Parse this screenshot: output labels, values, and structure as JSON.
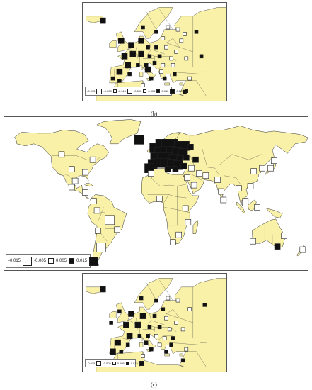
{
  "captions": {
    "b": "(b)",
    "c": "(c)"
  },
  "colors": {
    "land": "#f9f1a8",
    "coast": "#333333",
    "ocean": "#ffffff",
    "positive": "#111111",
    "negative": "#ffffff"
  },
  "legend_top": {
    "labels": [
      "-0.015",
      "-0.005",
      "-0.015",
      "-0.005",
      "0.005",
      "0.015",
      "0.005"
    ]
  },
  "legend_main": {
    "labels": [
      "-0.015",
      "-0.005",
      "0.005",
      "0.015"
    ]
  },
  "legend_bottom": {
    "labels": [
      "-0.015",
      "-0.005",
      "0.005",
      "0.015"
    ]
  },
  "markers_top": [
    {
      "lon": -14,
      "lat": 64,
      "v": 0.015
    },
    {
      "lon": 10,
      "lat": 61,
      "v": 0.005
    },
    {
      "lon": 18,
      "lat": 59,
      "v": 0.005
    },
    {
      "lon": 25,
      "lat": 61,
      "v": -0.005
    },
    {
      "lon": 31,
      "lat": 60,
      "v": -0.005
    },
    {
      "lon": 22,
      "lat": 56,
      "v": -0.005
    },
    {
      "lon": 33,
      "lat": 55,
      "v": -0.005
    },
    {
      "lon": 35,
      "lat": 58,
      "v": -0.005
    },
    {
      "lon": 42,
      "lat": 59,
      "v": 0.005
    },
    {
      "lon": -3,
      "lat": 55,
      "v": 0.015
    },
    {
      "lon": 3,
      "lat": 53,
      "v": 0.015
    },
    {
      "lon": 9,
      "lat": 55,
      "v": 0.015
    },
    {
      "lon": 13,
      "lat": 52,
      "v": 0.005
    },
    {
      "lon": 18,
      "lat": 52,
      "v": 0.005
    },
    {
      "lon": 24,
      "lat": 52,
      "v": -0.005
    },
    {
      "lon": 30,
      "lat": 50,
      "v": -0.005
    },
    {
      "lon": -1,
      "lat": 48,
      "v": 0.015
    },
    {
      "lon": 4,
      "lat": 49,
      "v": 0.015
    },
    {
      "lon": 9,
      "lat": 49,
      "v": 0.015
    },
    {
      "lon": 14,
      "lat": 48,
      "v": 0.005
    },
    {
      "lon": 20,
      "lat": 48,
      "v": 0.005
    },
    {
      "lon": 27,
      "lat": 47,
      "v": -0.005
    },
    {
      "lon": 36,
      "lat": 47,
      "v": -0.005
    },
    {
      "lon": 45,
      "lat": 48,
      "v": 0.005
    },
    {
      "lon": 1,
      "lat": 44,
      "v": 0.015
    },
    {
      "lon": 7,
      "lat": 44,
      "v": 0.005
    },
    {
      "lon": 12,
      "lat": 44,
      "v": 0.005
    },
    {
      "lon": 17,
      "lat": 45,
      "v": 0.005
    },
    {
      "lon": 22,
      "lat": 44,
      "v": -0.005
    },
    {
      "lon": 28,
      "lat": 44,
      "v": -0.005
    },
    {
      "lon": -4,
      "lat": 41,
      "v": 0.015
    },
    {
      "lon": 2,
      "lat": 40,
      "v": 0.005
    },
    {
      "lon": 13,
      "lat": 42,
      "v": 0.015
    },
    {
      "lon": 21,
      "lat": 41,
      "v": -0.005
    },
    {
      "lon": 29,
      "lat": 40,
      "v": 0.005
    },
    {
      "lon": -8,
      "lat": 38,
      "v": 0.005
    },
    {
      "lon": -4,
      "lat": 37,
      "v": 0.005
    },
    {
      "lon": 15,
      "lat": 38,
      "v": 0.005
    },
    {
      "lon": 23,
      "lat": 38,
      "v": 0.005
    },
    {
      "lon": 38,
      "lat": 38,
      "v": -0.005
    },
    {
      "lon": 35,
      "lat": 32,
      "v": 0.005
    },
    {
      "lon": 10,
      "lat": 35,
      "v": -0.005
    }
  ],
  "markers_main": [
    {
      "lon": -20,
      "lat": 64,
      "v": 0.015
    },
    {
      "lon": -2,
      "lat": 56,
      "v": 0.015
    },
    {
      "lon": 5,
      "lat": 60,
      "v": 0.015
    },
    {
      "lon": 12,
      "lat": 60,
      "v": 0.015
    },
    {
      "lon": 20,
      "lat": 60,
      "v": 0.015
    },
    {
      "lon": 27,
      "lat": 58,
      "v": 0.015
    },
    {
      "lon": 34,
      "lat": 58,
      "v": 0.015
    },
    {
      "lon": 41,
      "lat": 57,
      "v": 0.005
    },
    {
      "lon": 4,
      "lat": 52,
      "v": 0.015
    },
    {
      "lon": 11,
      "lat": 53,
      "v": 0.015
    },
    {
      "lon": 18,
      "lat": 53,
      "v": 0.015
    },
    {
      "lon": 25,
      "lat": 52,
      "v": 0.015
    },
    {
      "lon": 32,
      "lat": 51,
      "v": 0.015
    },
    {
      "lon": -1,
      "lat": 47,
      "v": 0.015
    },
    {
      "lon": 7,
      "lat": 47,
      "v": 0.015
    },
    {
      "lon": 14,
      "lat": 47,
      "v": 0.015
    },
    {
      "lon": 21,
      "lat": 46,
      "v": 0.015
    },
    {
      "lon": 28,
      "lat": 46,
      "v": 0.005
    },
    {
      "lon": 36,
      "lat": 47,
      "v": 0.005
    },
    {
      "lon": -4,
      "lat": 41,
      "v": 0.015
    },
    {
      "lon": 3,
      "lat": 42,
      "v": 0.015
    },
    {
      "lon": 11,
      "lat": 42,
      "v": 0.015
    },
    {
      "lon": 19,
      "lat": 41,
      "v": 0.015
    },
    {
      "lon": 26,
      "lat": 40,
      "v": 0.015
    },
    {
      "lon": 33,
      "lat": 39,
      "v": 0.005
    },
    {
      "lon": -8,
      "lat": 37,
      "v": 0.015
    },
    {
      "lon": 14,
      "lat": 36,
      "v": 0.005
    },
    {
      "lon": 23,
      "lat": 36,
      "v": 0.005
    },
    {
      "lon": 47,
      "lat": 45,
      "v": 0.005
    },
    {
      "lon": -112,
      "lat": 50,
      "v": -0.005
    },
    {
      "lon": -75,
      "lat": 45,
      "v": -0.005
    },
    {
      "lon": -100,
      "lat": 36,
      "v": -0.005
    },
    {
      "lon": -84,
      "lat": 33,
      "v": -0.005
    },
    {
      "lon": -96,
      "lat": 25,
      "v": -0.005
    },
    {
      "lon": -100,
      "lat": 19,
      "v": -0.005
    },
    {
      "lon": -84,
      "lat": 14,
      "v": -0.005
    },
    {
      "lon": -74,
      "lat": 6,
      "v": -0.005
    },
    {
      "lon": -70,
      "lat": -3,
      "v": -0.005
    },
    {
      "lon": -55,
      "lat": -12,
      "v": -0.015
    },
    {
      "lon": -46,
      "lat": -21,
      "v": -0.005
    },
    {
      "lon": -69,
      "lat": -22,
      "v": -0.005
    },
    {
      "lon": -65,
      "lat": -38,
      "v": -0.015
    },
    {
      "lon": 42,
      "lat": 37,
      "v": -0.005
    },
    {
      "lon": 51,
      "lat": 32,
      "v": -0.005
    },
    {
      "lon": 37,
      "lat": 28,
      "v": -0.005
    },
    {
      "lon": 45,
      "lat": 21,
      "v": -0.005
    },
    {
      "lon": 59,
      "lat": 30,
      "v": -0.005
    },
    {
      "lon": 73,
      "lat": 26,
      "v": -0.005
    },
    {
      "lon": 77,
      "lat": 15,
      "v": -0.005
    },
    {
      "lon": 80,
      "lat": 7,
      "v": -0.005
    },
    {
      "lon": 98,
      "lat": 18,
      "v": -0.005
    },
    {
      "lon": 112,
      "lat": 20,
      "v": -0.005
    },
    {
      "lon": 116,
      "lat": 34,
      "v": -0.005
    },
    {
      "lon": 126,
      "lat": 37,
      "v": -0.005
    },
    {
      "lon": 136,
      "lat": 37,
      "v": -0.005
    },
    {
      "lon": 140,
      "lat": 44,
      "v": -0.005
    },
    {
      "lon": 106,
      "lat": 6,
      "v": -0.005
    },
    {
      "lon": 120,
      "lat": 0,
      "v": -0.005
    },
    {
      "lon": 35,
      "lat": -1,
      "v": -0.005
    },
    {
      "lon": 38,
      "lat": -14,
      "v": -0.005
    },
    {
      "lon": 27,
      "lat": -26,
      "v": -0.005
    },
    {
      "lon": 20,
      "lat": -33,
      "v": -0.005
    },
    {
      "lon": 4,
      "lat": 8,
      "v": -0.005
    },
    {
      "lon": -6,
      "lat": 32,
      "v": -0.005
    },
    {
      "lon": 152,
      "lat": -27,
      "v": -0.005
    },
    {
      "lon": 144,
      "lat": -37,
      "v": 0.005
    },
    {
      "lon": 115,
      "lat": -32,
      "v": -0.005
    },
    {
      "lon": 174,
      "lat": -40,
      "v": -0.005
    }
  ],
  "markers_bottom": [
    {
      "lon": -14,
      "lat": 65,
      "v": 0.015
    },
    {
      "lon": 9,
      "lat": 61,
      "v": 0.005
    },
    {
      "lon": 18,
      "lat": 60,
      "v": 0.005
    },
    {
      "lon": 25,
      "lat": 61,
      "v": -0.005
    },
    {
      "lon": 31,
      "lat": 60,
      "v": -0.005
    },
    {
      "lon": 22,
      "lat": 56,
      "v": 0.005
    },
    {
      "lon": 38,
      "lat": 56,
      "v": -0.005
    },
    {
      "lon": 47,
      "lat": 58,
      "v": 0.005
    },
    {
      "lon": -4,
      "lat": 55,
      "v": 0.005
    },
    {
      "lon": 3,
      "lat": 54,
      "v": 0.015
    },
    {
      "lon": 10,
      "lat": 53,
      "v": 0.015
    },
    {
      "lon": 17,
      "lat": 53,
      "v": 0.005
    },
    {
      "lon": 24,
      "lat": 52,
      "v": -0.005
    },
    {
      "lon": 30,
      "lat": 50,
      "v": -0.005
    },
    {
      "lon": -9,
      "lat": 50,
      "v": 0.005
    },
    {
      "lon": 0,
      "lat": 49,
      "v": 0.015
    },
    {
      "lon": 7,
      "lat": 49,
      "v": 0.015
    },
    {
      "lon": 14,
      "lat": 48,
      "v": 0.005
    },
    {
      "lon": 20,
      "lat": 48,
      "v": 0.005
    },
    {
      "lon": 26,
      "lat": 47,
      "v": -0.005
    },
    {
      "lon": 34,
      "lat": 47,
      "v": -0.005
    },
    {
      "lon": 2,
      "lat": 44,
      "v": 0.015
    },
    {
      "lon": 8,
      "lat": 44,
      "v": 0.005
    },
    {
      "lon": 13,
      "lat": 44,
      "v": 0.005
    },
    {
      "lon": 18,
      "lat": 44,
      "v": -0.005
    },
    {
      "lon": 23,
      "lat": 43,
      "v": -0.005
    },
    {
      "lon": 28,
      "lat": 43,
      "v": 0.005
    },
    {
      "lon": -5,
      "lat": 41,
      "v": 0.015
    },
    {
      "lon": 1,
      "lat": 40,
      "v": 0.005
    },
    {
      "lon": 12,
      "lat": 41,
      "v": 0.005
    },
    {
      "lon": 20,
      "lat": 40,
      "v": -0.005
    },
    {
      "lon": 27,
      "lat": 40,
      "v": 0.005
    },
    {
      "lon": -8,
      "lat": 37,
      "v": 0.015
    },
    {
      "lon": -3,
      "lat": 37,
      "v": 0.005
    },
    {
      "lon": 15,
      "lat": 38,
      "v": 0.005
    },
    {
      "lon": 24,
      "lat": 37,
      "v": 0.005
    },
    {
      "lon": 36,
      "lat": 38,
      "v": -0.005
    },
    {
      "lon": 10,
      "lat": 35,
      "v": -0.005
    },
    {
      "lon": 34,
      "lat": 33,
      "v": 0.005
    }
  ]
}
